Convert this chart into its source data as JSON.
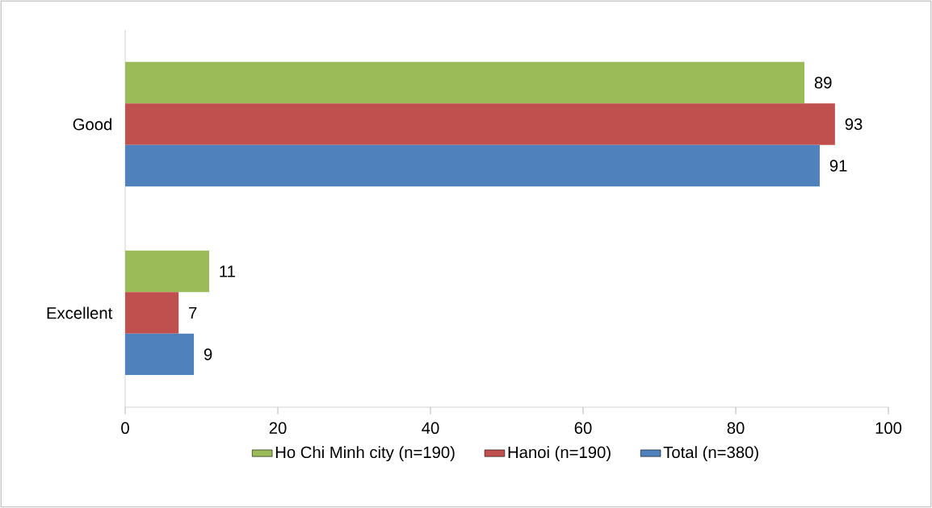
{
  "chart_data": {
    "type": "bar",
    "orientation": "horizontal",
    "categories": [
      "Good",
      "Excellent"
    ],
    "series": [
      {
        "name": "Ho Chi Minh city (n=190)",
        "color": "#9bbb59",
        "values": [
          89,
          11
        ]
      },
      {
        "name": "Hanoi (n=190)",
        "color": "#c0504d",
        "values": [
          93,
          7
        ]
      },
      {
        "name": "Total (n=380)",
        "color": "#4f81bd",
        "values": [
          91,
          9
        ]
      }
    ],
    "xlim": [
      0,
      100
    ],
    "xticks": [
      0,
      20,
      40,
      60,
      80,
      100
    ],
    "data_labels": true,
    "legend": "bottom",
    "grid": false
  }
}
